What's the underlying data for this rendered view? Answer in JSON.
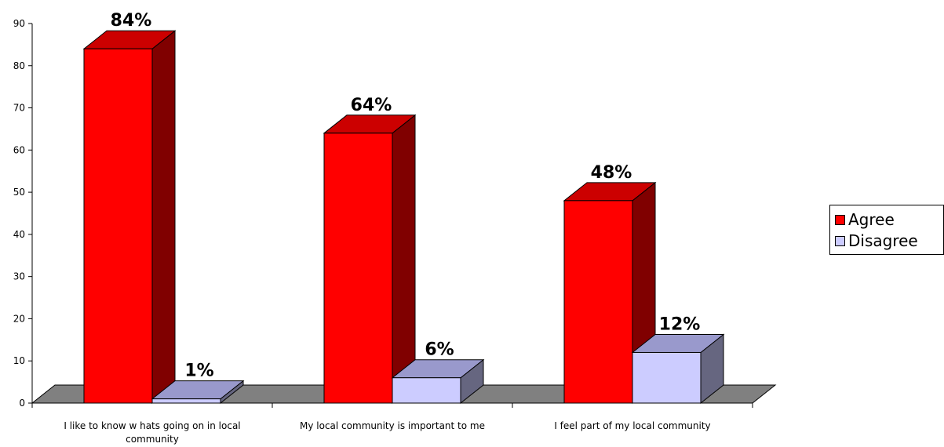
{
  "chart_data": {
    "type": "bar",
    "style": "3d-clustered-column",
    "categories": [
      [
        "I like to know  w hats going on in local",
        "community"
      ],
      [
        "My local community is important to me"
      ],
      [
        "I feel part of my local community"
      ]
    ],
    "series": [
      {
        "name": "Agree",
        "values": [
          84,
          64,
          48
        ],
        "data_labels": [
          "84%",
          "64%",
          "48%"
        ],
        "colors": {
          "front": "#ff0000",
          "top": "#cc0000",
          "side": "#800000"
        }
      },
      {
        "name": "Disagree",
        "values": [
          1,
          6,
          12
        ],
        "data_labels": [
          "1%",
          "6%",
          "12%"
        ],
        "colors": {
          "front": "#ccccff",
          "top": "#9999cc",
          "side": "#666680"
        }
      }
    ],
    "y_ticks": [
      "0",
      "10",
      "20",
      "30",
      "40",
      "50",
      "60",
      "70",
      "80",
      "90"
    ],
    "ylim": [
      0,
      90
    ],
    "grid": false,
    "floor_color": "#808080",
    "legend_position": "right"
  }
}
